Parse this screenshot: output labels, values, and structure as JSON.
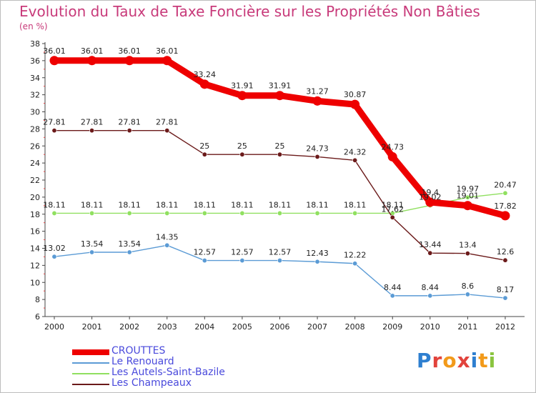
{
  "header": {
    "title": "Evolution du Taux de Taxe Foncière sur les Propriétés Non Bâties",
    "subtitle": "(en %)"
  },
  "logo": {
    "text": "Proxiti",
    "colors": [
      "#2e7fd0",
      "#e2433c",
      "#f29a1a",
      "#e2433c",
      "#2e7fd0",
      "#f29a1a",
      "#8ac43f"
    ]
  },
  "chart_data": {
    "type": "line",
    "title": "Evolution du Taux de Taxe Foncière sur les Propriétés Non Bâties",
    "ylabel": "(en %)",
    "xlabel": "",
    "x": [
      "2000",
      "2001",
      "2002",
      "2003",
      "2004",
      "2005",
      "2006",
      "2007",
      "2008",
      "2009",
      "2010",
      "2011",
      "2012"
    ],
    "ylim": [
      6,
      38
    ],
    "yticks": [
      6,
      8,
      10,
      12,
      14,
      16,
      18,
      20,
      22,
      24,
      26,
      28,
      30,
      32,
      34,
      36,
      38
    ],
    "grid": false,
    "legend_position": "bottom-left",
    "series": [
      {
        "name": "CROUTTES",
        "color": "#ee0000",
        "emphasis": true,
        "values": [
          36.01,
          36.01,
          36.01,
          36.01,
          33.24,
          31.91,
          31.91,
          31.27,
          30.87,
          24.73,
          19.4,
          19.01,
          17.82
        ],
        "labels": [
          "36.01",
          "36.01",
          "36.01",
          "36.01",
          "33.24",
          "31.91",
          "31.91",
          "31.27",
          "30.87",
          "24.73",
          "19.4",
          "19.01",
          "17.82"
        ]
      },
      {
        "name": "Le Renouard",
        "color": "#5b9bd5",
        "emphasis": false,
        "values": [
          13.02,
          13.54,
          13.54,
          14.35,
          12.57,
          12.57,
          12.57,
          12.43,
          12.22,
          8.44,
          8.44,
          8.6,
          8.17
        ],
        "labels": [
          "13.02",
          "13.54",
          "13.54",
          "14.35",
          "12.57",
          "12.57",
          "12.57",
          "12.43",
          "12.22",
          "8.44",
          "8.44",
          "8.6",
          "8.17"
        ]
      },
      {
        "name": "Les Autels-Saint-Bazile",
        "color": "#90e060",
        "emphasis": false,
        "values": [
          18.11,
          18.11,
          18.11,
          18.11,
          18.11,
          18.11,
          18.11,
          18.11,
          18.11,
          18.11,
          19.02,
          19.97,
          20.47
        ],
        "labels": [
          "18.11",
          "18.11",
          "18.11",
          "18.11",
          "18.11",
          "18.11",
          "18.11",
          "18.11",
          "18.11",
          "18.11",
          "19.02",
          "19.97",
          "20.47"
        ]
      },
      {
        "name": "Les Champeaux",
        "color": "#6b1a1a",
        "emphasis": false,
        "values": [
          27.81,
          27.81,
          27.81,
          27.81,
          25,
          25,
          25,
          24.73,
          24.32,
          17.62,
          13.44,
          13.4,
          12.6
        ],
        "labels": [
          "27.81",
          "27.81",
          "27.81",
          "27.81",
          "25",
          "25",
          "25",
          "24.73",
          "24.32",
          "17.62",
          "13.44",
          "13.4",
          "12.6"
        ]
      }
    ]
  }
}
